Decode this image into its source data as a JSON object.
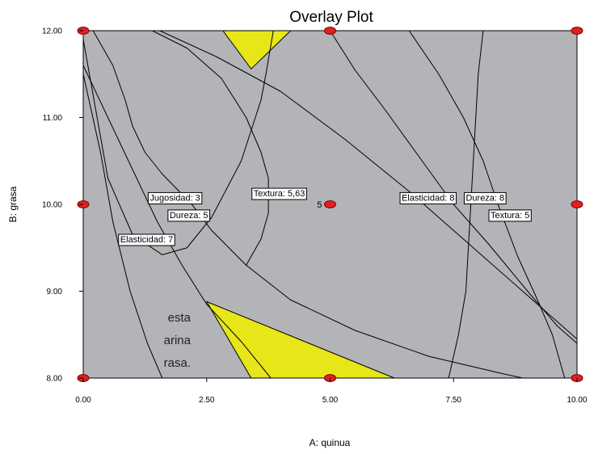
{
  "chart_data": {
    "type": "contour",
    "title": "Overlay Plot",
    "xlabel": "A: quinua",
    "ylabel": "B: grasa",
    "xlim": [
      0,
      10
    ],
    "ylim": [
      8,
      12
    ],
    "x_ticks": [
      "0.00",
      "2.50",
      "5.00",
      "7.50",
      "10.00"
    ],
    "y_ticks": [
      "8.00",
      "9.00",
      "10.00",
      "11.00",
      "12.00"
    ],
    "background_color": "#b3b4b8",
    "feasible_color": "#e6e619",
    "design_points": [
      {
        "x": 0,
        "y": 8
      },
      {
        "x": 5,
        "y": 8
      },
      {
        "x": 10,
        "y": 8
      },
      {
        "x": 0,
        "y": 10
      },
      {
        "x": 5,
        "y": 10,
        "label": "5"
      },
      {
        "x": 10,
        "y": 10
      },
      {
        "x": 0,
        "y": 12
      },
      {
        "x": 5,
        "y": 12
      },
      {
        "x": 10,
        "y": 12
      }
    ],
    "contour_labels": [
      {
        "text": "Jugosidad: 3",
        "x": 1.3,
        "y": 10.08
      },
      {
        "text": "Dureza: 5",
        "x": 1.7,
        "y": 9.88
      },
      {
        "text": "Elasticidad: 7",
        "x": 0.7,
        "y": 9.6
      },
      {
        "text": "Textura: 5,63",
        "x": 3.4,
        "y": 10.13
      },
      {
        "text": "Elasticidad: 8",
        "x": 6.4,
        "y": 10.08
      },
      {
        "text": "Dureza: 8",
        "x": 7.7,
        "y": 10.08
      },
      {
        "text": "Textura: 5",
        "x": 8.2,
        "y": 9.88
      }
    ],
    "feasible_regions": [
      [
        [
          2.83,
          12
        ],
        [
          4.2,
          12
        ],
        [
          3.4,
          11.56
        ]
      ],
      [
        [
          2.5,
          8.88
        ],
        [
          6.3,
          8
        ],
        [
          3.4,
          8
        ]
      ]
    ],
    "contour_lines": [
      [
        [
          0,
          11.6
        ],
        [
          0.5,
          11.0
        ],
        [
          1.0,
          10.4
        ],
        [
          1.5,
          9.8
        ],
        [
          2.0,
          9.3
        ],
        [
          2.5,
          8.85
        ],
        [
          3.2,
          8.42
        ],
        [
          3.8,
          8.0
        ]
      ],
      [
        [
          0,
          11.5
        ],
        [
          0.35,
          10.6
        ],
        [
          0.6,
          9.8
        ],
        [
          0.95,
          9.0
        ],
        [
          1.3,
          8.4
        ],
        [
          1.6,
          8.0
        ]
      ],
      [
        [
          0,
          11.9
        ],
        [
          0.5,
          10.3
        ],
        [
          1.0,
          9.65
        ],
        [
          1.6,
          9.42
        ],
        [
          2.1,
          9.5
        ],
        [
          2.6,
          9.85
        ],
        [
          3.2,
          10.5
        ],
        [
          3.6,
          11.2
        ],
        [
          3.7,
          11.5
        ],
        [
          3.85,
          12
        ]
      ],
      [
        [
          0.2,
          12
        ],
        [
          0.6,
          11.6
        ],
        [
          0.85,
          11.2
        ],
        [
          1.0,
          10.9
        ],
        [
          1.25,
          10.6
        ],
        [
          1.6,
          10.35
        ],
        [
          2.2,
          10.0
        ],
        [
          2.6,
          9.7
        ],
        [
          3.3,
          9.3
        ],
        [
          4.2,
          8.9
        ],
        [
          5.5,
          8.55
        ],
        [
          7.0,
          8.25
        ],
        [
          8.5,
          8.05
        ],
        [
          8.9,
          8.0
        ]
      ],
      [
        [
          1.4,
          12
        ],
        [
          2.1,
          11.8
        ],
        [
          2.8,
          11.45
        ],
        [
          3.3,
          11.0
        ],
        [
          3.6,
          10.6
        ],
        [
          3.75,
          10.3
        ],
        [
          3.75,
          9.9
        ],
        [
          3.6,
          9.6
        ],
        [
          3.3,
          9.3
        ]
      ],
      [
        [
          5.0,
          12
        ],
        [
          5.5,
          11.55
        ],
        [
          6.1,
          11.1
        ],
        [
          6.8,
          10.55
        ],
        [
          7.5,
          10.0
        ],
        [
          8.2,
          9.55
        ],
        [
          9.0,
          9.0
        ],
        [
          9.6,
          8.6
        ],
        [
          10,
          8.4
        ]
      ],
      [
        [
          6.6,
          12
        ],
        [
          7.2,
          11.5
        ],
        [
          7.7,
          11.0
        ],
        [
          8.1,
          10.5
        ],
        [
          8.4,
          10.0
        ],
        [
          8.8,
          9.4
        ],
        [
          9.2,
          8.9
        ],
        [
          9.5,
          8.5
        ],
        [
          9.75,
          8.0
        ]
      ],
      [
        [
          8.1,
          12
        ],
        [
          8.0,
          11.5
        ],
        [
          7.95,
          11.0
        ],
        [
          7.9,
          10.5
        ],
        [
          7.85,
          10.0
        ],
        [
          7.8,
          9.5
        ],
        [
          7.75,
          9.0
        ],
        [
          7.6,
          8.5
        ],
        [
          7.4,
          8.0
        ]
      ],
      [
        [
          1.55,
          12
        ],
        [
          2.7,
          11.7
        ],
        [
          4.0,
          11.3
        ],
        [
          5.3,
          10.75
        ],
        [
          6.6,
          10.15
        ],
        [
          7.8,
          9.55
        ],
        [
          9.0,
          8.95
        ],
        [
          10,
          8.45
        ]
      ]
    ]
  },
  "side_text": [
    "esta",
    "arina",
    "rasa."
  ]
}
